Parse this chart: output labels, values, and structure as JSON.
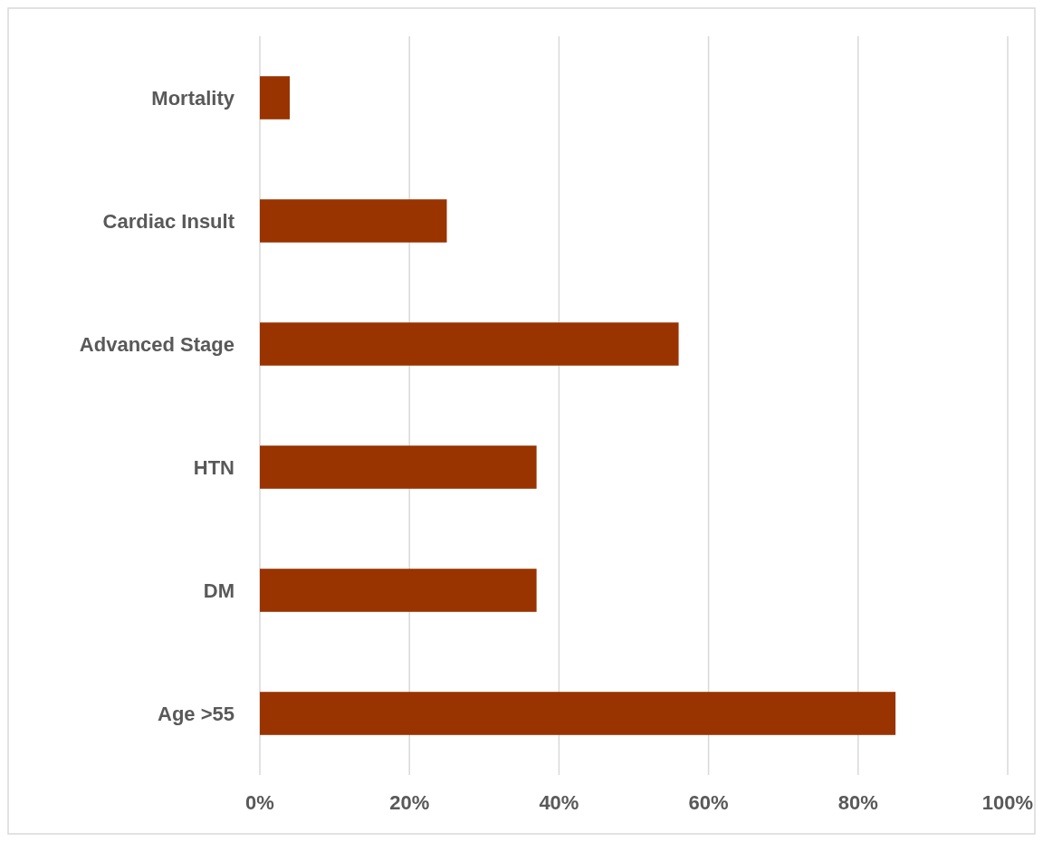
{
  "chart_data": {
    "type": "bar",
    "orientation": "horizontal",
    "categories": [
      "Mortality",
      "Cardiac Insult",
      "Advanced Stage",
      "HTN",
      "DM",
      "Age >55"
    ],
    "values": [
      4,
      25,
      56,
      37,
      37,
      85
    ],
    "color": "#993300",
    "xlim": [
      0,
      100
    ],
    "xticks": [
      {
        "value": 0,
        "label": "0%"
      },
      {
        "value": 20,
        "label": "20%"
      },
      {
        "value": 40,
        "label": "40%"
      },
      {
        "value": 60,
        "label": "60%"
      },
      {
        "value": 80,
        "label": "80%"
      },
      {
        "value": 100,
        "label": "100%"
      }
    ],
    "grid": "x"
  }
}
